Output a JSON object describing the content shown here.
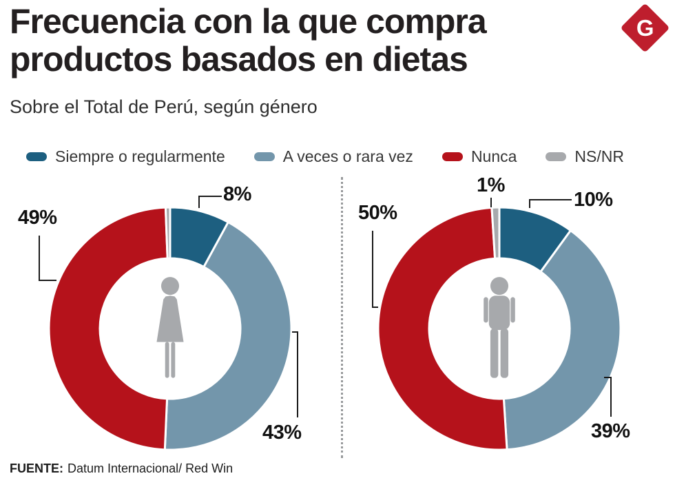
{
  "header": {
    "title_line1": "Frecuencia con la que compra",
    "title_line2": "productos basados en dietas",
    "subtitle": "Sobre el Total de Perú, según género",
    "logo_letter": "G"
  },
  "legend": [
    {
      "label": "Siempre o regularmente",
      "color": "#1d5f80"
    },
    {
      "label": "A veces o rara vez",
      "color": "#7396ab"
    },
    {
      "label": "Nunca",
      "color": "#b5121b"
    },
    {
      "label": "NS/NR",
      "color": "#a7a9ac"
    }
  ],
  "chart_data": [
    {
      "type": "pie",
      "style": "donut",
      "group_icon": "woman-icon",
      "legend_position": "top",
      "segments": [
        {
          "label": "Siempre o regularmente",
          "value": 8,
          "display_label": "8%",
          "color": "#1d5f80"
        },
        {
          "label": "A veces o rara vez",
          "value": 43,
          "display_label": "43%",
          "color": "#7396ab"
        },
        {
          "label": "Nunca",
          "value": 49,
          "display_label": "49%",
          "color": "#b5121b"
        },
        {
          "label": "NS/NR",
          "value": 0,
          "display_label": "",
          "color": "#a7a9ac"
        }
      ]
    },
    {
      "type": "pie",
      "style": "donut",
      "group_icon": "man-icon",
      "legend_position": "top",
      "segments": [
        {
          "label": "Siempre o regularmente",
          "value": 10,
          "display_label": "10%",
          "color": "#1d5f80"
        },
        {
          "label": "A veces o rara vez",
          "value": 39,
          "display_label": "39%",
          "color": "#7396ab"
        },
        {
          "label": "Nunca",
          "value": 50,
          "display_label": "50%",
          "color": "#b5121b"
        },
        {
          "label": "NS/NR",
          "value": 1,
          "display_label": "1%",
          "color": "#a7a9ac"
        }
      ]
    }
  ],
  "footer": {
    "source_label": "FUENTE:",
    "source_text": "Datum Internacional/ Red Win"
  }
}
